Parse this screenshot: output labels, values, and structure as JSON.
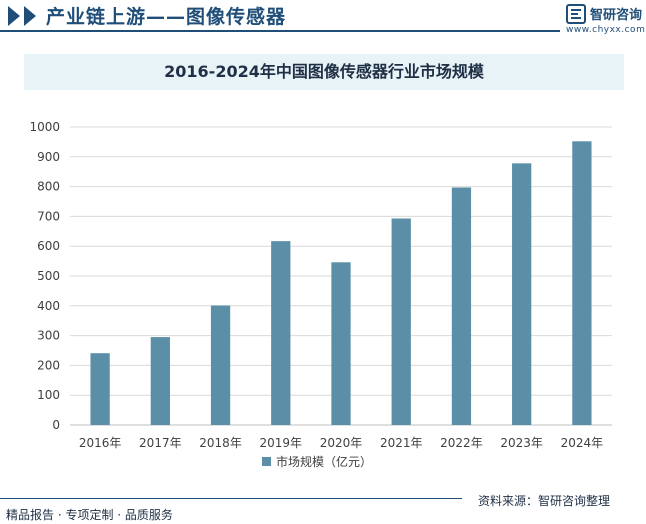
{
  "header": {
    "title": "产业链上游——图像传感器",
    "brand_name": "智研咨询",
    "brand_url": "www.chyxx.com"
  },
  "chart_data": {
    "type": "bar",
    "title": "2016-2024年中国图像传感器行业市场规模",
    "categories": [
      "2016年",
      "2017年",
      "2018年",
      "2019年",
      "2020年",
      "2021年",
      "2022年",
      "2023年",
      "2024年"
    ],
    "series": [
      {
        "name": "市场规模（亿元）",
        "values": [
          241,
          295,
          401,
          617,
          546,
          693,
          797,
          878,
          952
        ]
      }
    ],
    "ylim": [
      0,
      1000
    ],
    "yticks": [
      0,
      100,
      200,
      300,
      400,
      500,
      600,
      700,
      800,
      900,
      1000
    ],
    "grid": true,
    "legend": "bottom",
    "bar_color": "#5b8fa8"
  },
  "footer": {
    "left": "精品报告 · 专项定制 · 品质服务",
    "right": "资料来源：智研咨询整理"
  },
  "colors": {
    "brand": "#1f4e79",
    "title_band": "#e8f3f8",
    "grid": "#d9d9d9"
  }
}
